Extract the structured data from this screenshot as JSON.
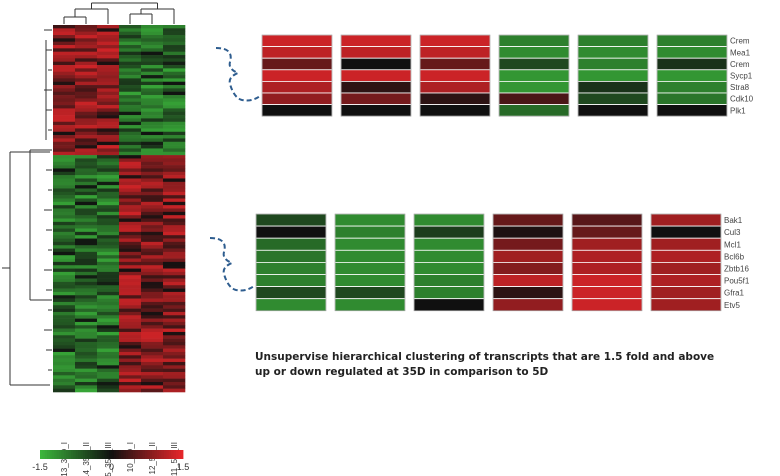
{
  "chart_data": [
    {
      "type": "heatmap",
      "title": "",
      "columns": [
        "13_35D_I",
        "14_35D_II",
        "15_35D_III",
        "10_5D_I",
        "12_5D_II",
        "11_5D_III"
      ],
      "dendrogram": "rows and columns",
      "colorbar": {
        "min": -1.5,
        "mid": 0,
        "max": 1.5,
        "tick_labels": [
          "-1.5",
          "0",
          "1.5"
        ],
        "colors": {
          "low": "#3cb83c",
          "mid": "#101010",
          "high": "#e8262a"
        }
      },
      "blocks": [
        {
          "group": "up at 35D",
          "value_35D": 1.2,
          "value_5D": -1.2
        },
        {
          "group": "down at 35D",
          "value_35D": -1.2,
          "value_5D": 1.2
        }
      ]
    },
    {
      "type": "heatmap",
      "columns": 6,
      "rows": [
        "Crem",
        "Mea1",
        "Crem",
        "Sycp1",
        "Stra8",
        "Cdk10",
        "Plk1"
      ],
      "values": [
        [
          1.3,
          1.3,
          1.3,
          -1.0,
          -1.0,
          -1.0
        ],
        [
          1.2,
          1.2,
          1.2,
          -1.1,
          -1.1,
          -1.1
        ],
        [
          0.6,
          0.0,
          0.6,
          -0.5,
          -1.0,
          -0.3
        ],
        [
          1.3,
          1.3,
          1.3,
          -1.2,
          -1.2,
          -1.2
        ],
        [
          1.1,
          0.2,
          1.1,
          -1.2,
          -0.3,
          -1.0
        ],
        [
          0.9,
          0.7,
          0.2,
          0.4,
          -0.5,
          -0.9
        ],
        [
          0.0,
          0.0,
          0.0,
          -0.8,
          0.0,
          0.0
        ]
      ]
    },
    {
      "type": "heatmap",
      "columns": 6,
      "rows": [
        "Bak1",
        "Cul3",
        "Mcl1",
        "Bcl6b",
        "Zbtb16",
        "Pou5f1",
        "Gfra1",
        "Etv5"
      ],
      "values": [
        [
          -0.5,
          -1.1,
          -1.1,
          0.6,
          0.5,
          1.0
        ],
        [
          0.0,
          -1.0,
          -0.4,
          0.1,
          0.6,
          0.0
        ],
        [
          -0.8,
          -1.1,
          -1.1,
          0.7,
          1.0,
          1.0
        ],
        [
          -0.9,
          -1.1,
          -1.1,
          1.0,
          1.1,
          1.1
        ],
        [
          -1.0,
          -1.1,
          -1.1,
          0.8,
          1.1,
          1.0
        ],
        [
          -1.0,
          -1.1,
          -1.0,
          1.2,
          1.3,
          1.1
        ],
        [
          -0.5,
          -0.5,
          -1.0,
          0.2,
          1.3,
          1.0
        ],
        [
          -1.1,
          -1.1,
          0.0,
          0.9,
          1.3,
          1.0
        ]
      ]
    }
  ],
  "caption": "Unsupervise hierarchical clustering of transcripts that are 1.5 fold and above up or down regulated at 35D in comparison to 5D"
}
